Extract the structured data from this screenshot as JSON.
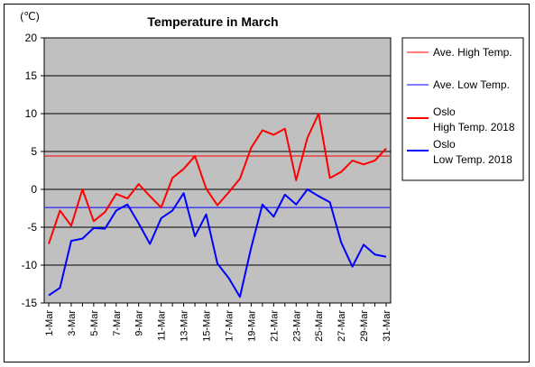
{
  "chart_data": {
    "type": "line",
    "title": "Temperature in March",
    "unit_label": "(℃)",
    "ylim": [
      -15,
      20
    ],
    "y_ticks": [
      "20",
      "15",
      "10",
      "5",
      "0",
      "-5",
      "-10",
      "-15"
    ],
    "y_tick_values": [
      20,
      15,
      10,
      5,
      0,
      -5,
      -10,
      -15
    ],
    "x": [
      1,
      2,
      3,
      4,
      5,
      6,
      7,
      8,
      9,
      10,
      11,
      12,
      13,
      14,
      15,
      16,
      17,
      18,
      19,
      20,
      21,
      22,
      23,
      24,
      25,
      26,
      27,
      28,
      29,
      30,
      31
    ],
    "x_tick_labels": [
      {
        "day": 1,
        "label": "1-Mar"
      },
      {
        "day": 3,
        "label": "3-Mar"
      },
      {
        "day": 5,
        "label": "5-Mar"
      },
      {
        "day": 7,
        "label": "7-Mar"
      },
      {
        "day": 9,
        "label": "9-Mar"
      },
      {
        "day": 11,
        "label": "11-Mar"
      },
      {
        "day": 13,
        "label": "13-Mar"
      },
      {
        "day": 15,
        "label": "15-Mar"
      },
      {
        "day": 17,
        "label": "17-Mar"
      },
      {
        "day": 19,
        "label": "19-Mar"
      },
      {
        "day": 21,
        "label": "21-Mar"
      },
      {
        "day": 23,
        "label": "23-Mar"
      },
      {
        "day": 25,
        "label": "25-Mar"
      },
      {
        "day": 27,
        "label": "27-Mar"
      },
      {
        "day": 29,
        "label": "29-Mar"
      },
      {
        "day": 31,
        "label": "31-Mar"
      }
    ],
    "grid": true,
    "legend_position": "right",
    "plot_background": "#c0c0c0",
    "series": [
      {
        "name": "Ave. High Temp.",
        "color": "#ff0000",
        "width": 1,
        "constant": 4.4
      },
      {
        "name": "Ave. Low Temp.",
        "color": "#0000ff",
        "width": 1,
        "constant": -2.4
      },
      {
        "name": "Oslo High Temp. 2018",
        "legend_lines": [
          "Oslo",
          "High Temp. 2018"
        ],
        "color": "#ff0000",
        "width": 2,
        "values": [
          -7.2,
          -2.8,
          -4.8,
          0.0,
          -4.2,
          -3.0,
          -0.6,
          -1.2,
          0.7,
          -0.9,
          -2.4,
          1.5,
          2.7,
          4.4,
          0.1,
          -2.1,
          -0.4,
          1.4,
          5.5,
          7.8,
          7.2,
          8.0,
          1.2,
          6.8,
          10.0,
          1.5,
          2.3,
          3.8,
          3.3,
          3.8,
          5.4
        ]
      },
      {
        "name": "Oslo Low Temp. 2018",
        "legend_lines": [
          "Oslo",
          "Low Temp. 2018"
        ],
        "color": "#0000ff",
        "width": 2,
        "values": [
          -14.0,
          -13.0,
          -6.8,
          -6.5,
          -5.1,
          -5.2,
          -2.8,
          -2.0,
          -4.5,
          -7.2,
          -3.8,
          -2.8,
          -0.5,
          -6.2,
          -3.3,
          -9.8,
          -11.7,
          -14.2,
          -7.7,
          -2.0,
          -3.6,
          -0.7,
          -2.0,
          0.0,
          -0.9,
          -1.7,
          -7.0,
          -10.2,
          -7.3,
          -8.6,
          -8.9
        ]
      }
    ]
  }
}
